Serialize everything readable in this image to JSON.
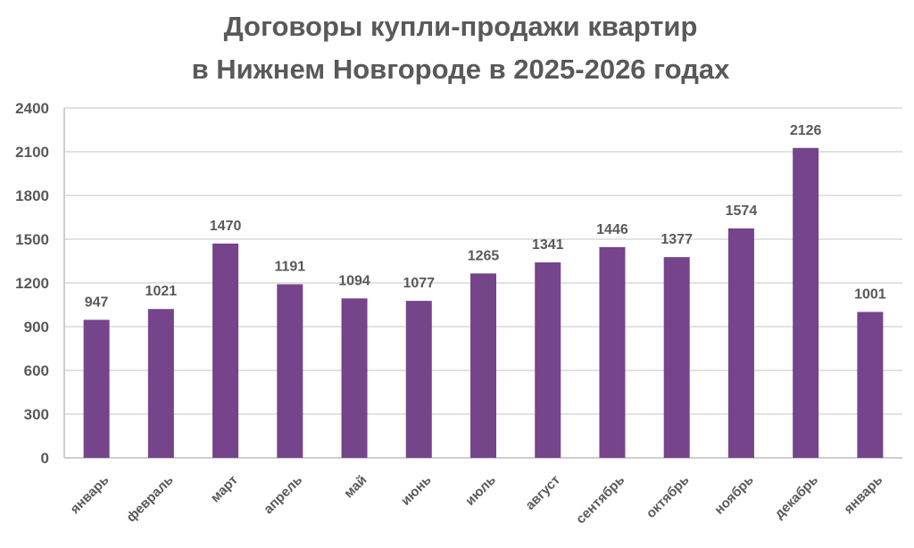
{
  "chart_data": {
    "type": "bar",
    "title": [
      "Договоры купли-продажи квартир",
      "в Нижнем Новгороде в 2025-2026 годах"
    ],
    "xlabel": "",
    "ylabel": "",
    "categories": [
      "январь",
      "февраль",
      "март",
      "апрель",
      "май",
      "июнь",
      "июль",
      "август",
      "сентябрь",
      "октябрь",
      "ноябрь",
      "декабрь",
      "январь"
    ],
    "values": [
      947,
      1021,
      1470,
      1191,
      1094,
      1077,
      1265,
      1341,
      1446,
      1377,
      1574,
      2126,
      1001
    ],
    "ylim": [
      0,
      2400
    ],
    "yticks": [
      0,
      300,
      600,
      900,
      1200,
      1500,
      1800,
      2100,
      2400
    ],
    "grid": true,
    "legend": "none",
    "data_labels": true,
    "colors": {
      "bar": "#76448A",
      "grid": "#D9D9D9",
      "text": "#595959"
    }
  }
}
